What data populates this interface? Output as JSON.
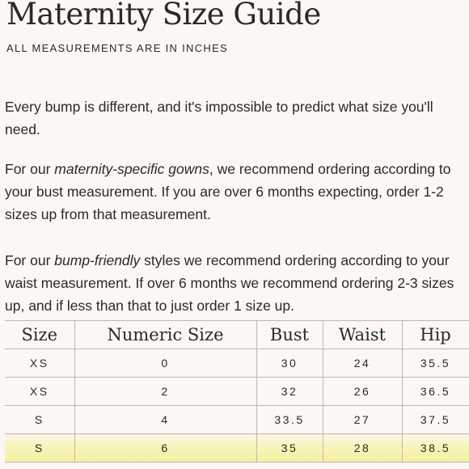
{
  "header": {
    "title": "Maternity Size Guide",
    "subtitle": "ALL MEASUREMENTS ARE IN INCHES"
  },
  "intro": {
    "p1": "Every bump is different, and it's impossible to predict what size you'll need.",
    "p2_prefix": "For our ",
    "p2_emph": "maternity-specific gowns",
    "p2_suffix": ", we recommend ordering according to your bust measurement.  If you are over 6 months expecting, order 1-2 sizes up from that measurement.",
    "p3_prefix": "For our ",
    "p3_emph": "bump-friendly",
    "p3_suffix": " styles we recommend ordering according to your waist measurement. If over 6 months we recommend ordering 2-3 sizes up, and if less than that to just order 1 size up."
  },
  "table": {
    "headers": [
      "Size",
      "Numeric Size",
      "Bust",
      "Waist",
      "Hip"
    ],
    "rows": [
      [
        "XS",
        "0",
        "30",
        "24",
        "35.5"
      ],
      [
        "XS",
        "2",
        "32",
        "26",
        "36.5"
      ],
      [
        "S",
        "4",
        "33.5",
        "27",
        "37.5"
      ],
      [
        "S",
        "6",
        "35",
        "28",
        "38.5"
      ]
    ],
    "highlight_color": "#f6f2aa"
  }
}
